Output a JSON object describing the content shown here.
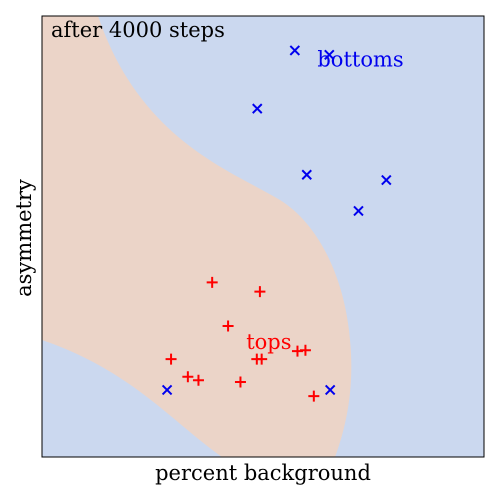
{
  "chart_data": {
    "type": "scatter",
    "title": "",
    "annotation": "after 4000 steps",
    "xlabel": "percent background",
    "ylabel": "asymmetry",
    "xlim": [
      0,
      1
    ],
    "ylim": [
      0,
      1
    ],
    "grid": false,
    "ticks": "none",
    "background_regions": [
      {
        "name": "tops",
        "color": "#ebd4c8",
        "description": "curved band region classified as tops"
      },
      {
        "name": "bottoms",
        "color": "#cbd8ef",
        "description": "remaining region classified as bottoms"
      }
    ],
    "series": [
      {
        "name": "bottoms",
        "marker": "x",
        "color": "#0000ee",
        "points": [
          {
            "x": 0.572,
            "y": 0.922
          },
          {
            "x": 0.65,
            "y": 0.912
          },
          {
            "x": 0.487,
            "y": 0.79
          },
          {
            "x": 0.599,
            "y": 0.64
          },
          {
            "x": 0.779,
            "y": 0.628
          },
          {
            "x": 0.716,
            "y": 0.558
          },
          {
            "x": 0.283,
            "y": 0.152
          },
          {
            "x": 0.652,
            "y": 0.152
          }
        ]
      },
      {
        "name": "tops",
        "marker": "+",
        "color": "#ff0000",
        "points": [
          {
            "x": 0.385,
            "y": 0.396
          },
          {
            "x": 0.493,
            "y": 0.375
          },
          {
            "x": 0.421,
            "y": 0.297
          },
          {
            "x": 0.292,
            "y": 0.222
          },
          {
            "x": 0.486,
            "y": 0.222
          },
          {
            "x": 0.497,
            "y": 0.222
          },
          {
            "x": 0.578,
            "y": 0.24
          },
          {
            "x": 0.596,
            "y": 0.242
          },
          {
            "x": 0.33,
            "y": 0.182
          },
          {
            "x": 0.354,
            "y": 0.174
          },
          {
            "x": 0.449,
            "y": 0.17
          },
          {
            "x": 0.615,
            "y": 0.138
          }
        ]
      }
    ],
    "labels": [
      {
        "text": "bottoms",
        "series": "bottoms",
        "x": 0.623,
        "y": 0.885
      },
      {
        "text": "tops",
        "series": "tops",
        "x": 0.462,
        "y": 0.245
      }
    ]
  }
}
